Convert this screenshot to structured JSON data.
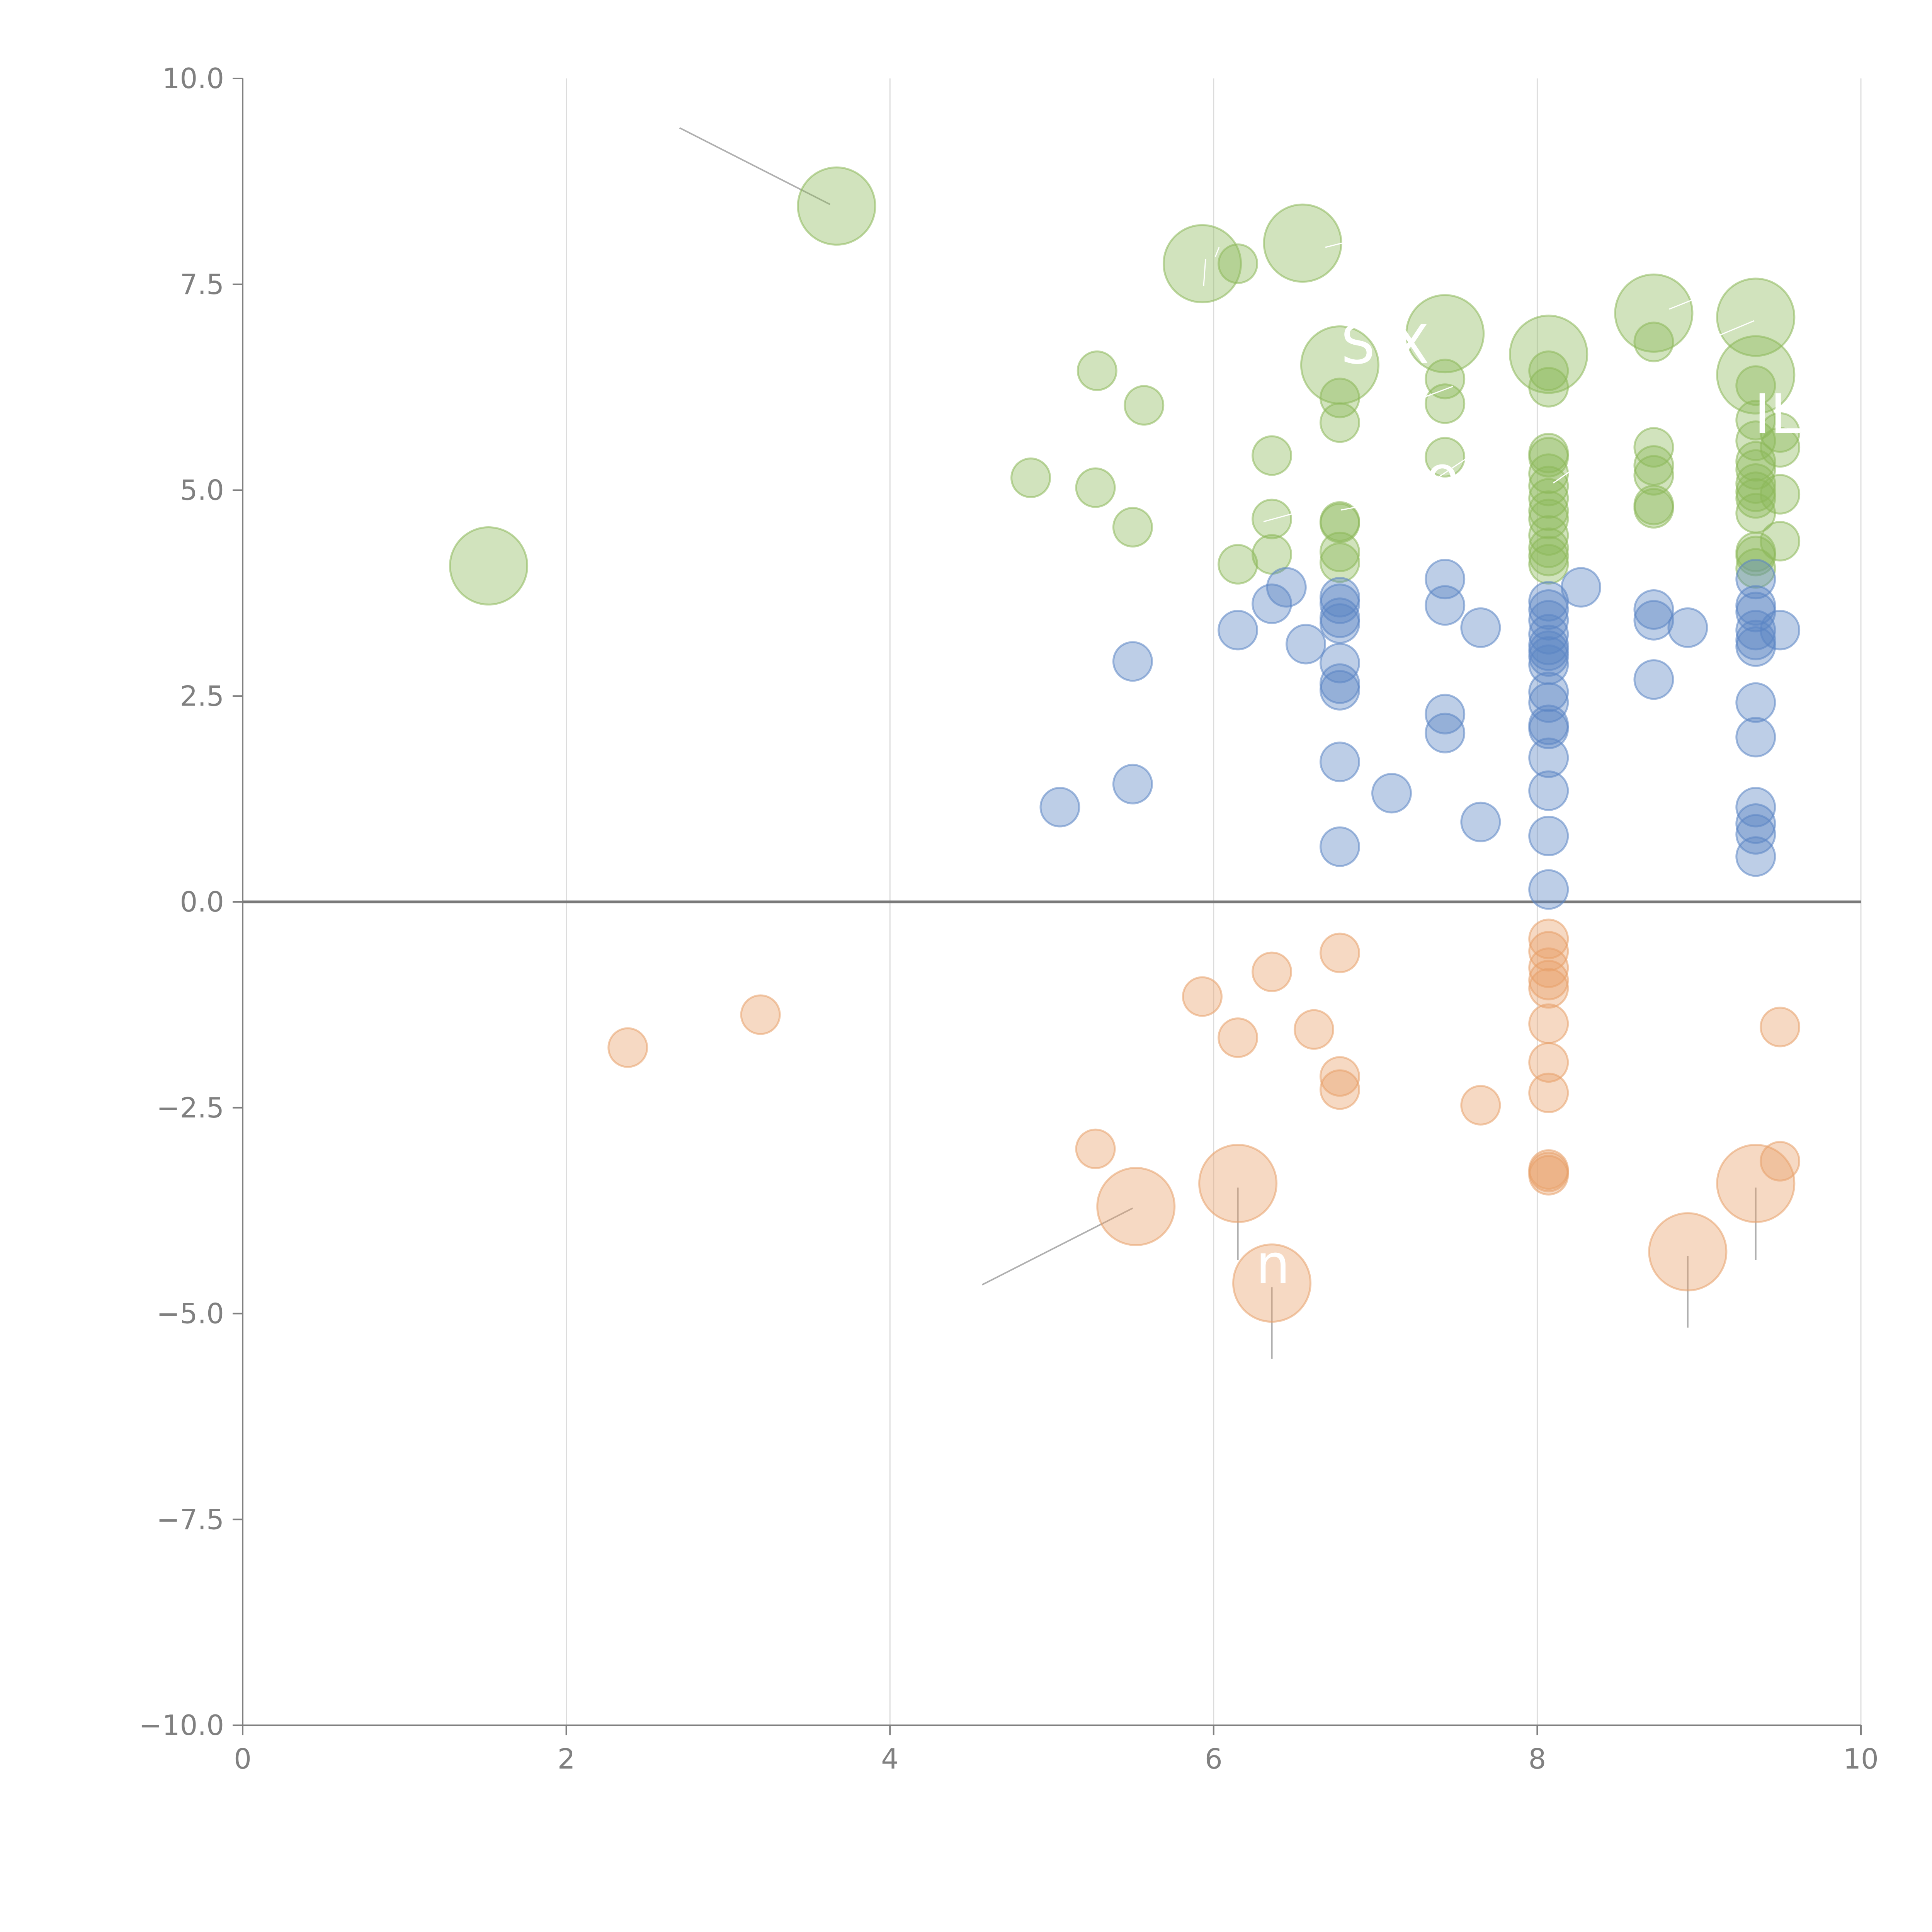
{
  "chart_data": {
    "type": "scatter",
    "title": "",
    "xlabel": "",
    "ylabel": "",
    "xlim": [
      0,
      10
    ],
    "ylim": [
      -10,
      10
    ],
    "grid": "vertical",
    "x_ticks": [
      0,
      2,
      4,
      6,
      8,
      10
    ],
    "x_tick_labels": [
      "0",
      "2",
      "4",
      "6",
      "8",
      "10"
    ],
    "y_ticks": [
      10,
      7.5,
      5,
      2.5,
      0,
      -2.5,
      -5,
      -7.5,
      -10
    ],
    "y_tick_labels": [
      "10.0",
      "7.5",
      "5.0",
      "2.5",
      "0.0",
      "−2.5",
      "−5.0",
      "−7.5",
      "−10.0"
    ],
    "series": [
      {
        "name": "green",
        "color": "#8db85a",
        "stroke": "#a8c880",
        "points": [
          [
            3.67,
            8.45,
            3
          ],
          [
            1.52,
            4.08,
            3
          ],
          [
            5.93,
            7.75,
            3
          ],
          [
            6.55,
            8.0,
            3
          ],
          [
            6.15,
            7.75,
            1
          ],
          [
            7.43,
            6.9,
            3
          ],
          [
            6.78,
            6.52,
            3
          ],
          [
            8.07,
            6.65,
            3
          ],
          [
            8.72,
            7.15,
            3
          ],
          [
            9.35,
            7.1,
            3
          ],
          [
            9.35,
            6.4,
            3
          ],
          [
            5.28,
            6.45,
            1
          ],
          [
            5.57,
            6.03,
            1
          ],
          [
            4.87,
            5.15,
            1
          ],
          [
            5.27,
            5.03,
            1
          ],
          [
            5.5,
            4.55,
            1
          ],
          [
            6.15,
            4.1,
            1
          ],
          [
            6.36,
            5.42,
            1
          ],
          [
            6.36,
            4.65,
            1
          ],
          [
            6.36,
            4.22,
            1
          ],
          [
            6.78,
            6.12,
            1
          ],
          [
            6.78,
            5.82,
            1
          ],
          [
            6.78,
            4.62,
            1
          ],
          [
            6.78,
            4.6,
            1
          ],
          [
            6.78,
            4.25,
            1
          ],
          [
            6.78,
            4.12,
            1
          ],
          [
            7.43,
            6.35,
            1
          ],
          [
            7.43,
            6.05,
            1
          ],
          [
            7.43,
            5.4,
            1
          ],
          [
            8.07,
            6.45,
            1
          ],
          [
            8.07,
            6.25,
            1
          ],
          [
            8.07,
            5.45,
            1
          ],
          [
            8.07,
            5.4,
            1
          ],
          [
            8.07,
            5.2,
            1
          ],
          [
            8.07,
            5.05,
            1
          ],
          [
            8.07,
            4.9,
            1
          ],
          [
            8.07,
            4.75,
            1
          ],
          [
            8.07,
            4.65,
            1
          ],
          [
            8.07,
            4.45,
            1
          ],
          [
            8.07,
            4.3,
            1
          ],
          [
            8.07,
            4.2,
            1
          ],
          [
            8.07,
            4.1,
            1
          ],
          [
            8.72,
            6.8,
            1
          ],
          [
            8.72,
            5.52,
            1
          ],
          [
            8.72,
            5.3,
            1
          ],
          [
            8.72,
            5.18,
            1
          ],
          [
            8.72,
            4.82,
            1
          ],
          [
            8.72,
            4.78,
            1
          ],
          [
            9.35,
            6.27,
            1
          ],
          [
            9.35,
            5.85,
            1
          ],
          [
            9.35,
            5.6,
            1
          ],
          [
            9.35,
            5.35,
            1
          ],
          [
            9.35,
            5.25,
            1
          ],
          [
            9.35,
            5.08,
            1
          ],
          [
            9.35,
            4.98,
            1
          ],
          [
            9.35,
            4.9,
            1
          ],
          [
            9.35,
            4.72,
            1
          ],
          [
            9.35,
            4.25,
            1
          ],
          [
            9.35,
            4.2,
            1
          ],
          [
            9.35,
            4.05,
            1
          ],
          [
            9.5,
            5.7,
            1
          ],
          [
            9.5,
            5.52,
            1
          ],
          [
            9.5,
            4.95,
            1
          ],
          [
            9.5,
            4.38,
            1
          ]
        ]
      },
      {
        "name": "blue",
        "color": "#5b85c4",
        "stroke": "#7a9dd0",
        "points": [
          [
            5.05,
            1.15,
            1
          ],
          [
            5.5,
            2.92,
            1
          ],
          [
            5.5,
            1.43,
            1
          ],
          [
            6.15,
            3.3,
            1
          ],
          [
            6.36,
            3.62,
            1
          ],
          [
            6.45,
            3.82,
            1
          ],
          [
            6.57,
            3.13,
            1
          ],
          [
            6.78,
            3.7,
            1
          ],
          [
            6.78,
            3.62,
            1
          ],
          [
            6.78,
            3.45,
            1
          ],
          [
            6.78,
            3.38,
            1
          ],
          [
            6.78,
            2.9,
            1
          ],
          [
            6.78,
            2.65,
            1
          ],
          [
            6.78,
            2.57,
            1
          ],
          [
            6.78,
            1.7,
            1
          ],
          [
            6.78,
            0.67,
            1
          ],
          [
            7.1,
            1.32,
            1
          ],
          [
            7.43,
            3.92,
            1
          ],
          [
            7.43,
            3.6,
            1
          ],
          [
            7.43,
            2.28,
            1
          ],
          [
            7.43,
            2.05,
            1
          ],
          [
            7.65,
            3.33,
            1
          ],
          [
            7.65,
            0.97,
            1
          ],
          [
            8.07,
            3.65,
            1
          ],
          [
            8.07,
            3.55,
            1
          ],
          [
            8.07,
            3.42,
            1
          ],
          [
            8.07,
            3.25,
            1
          ],
          [
            8.07,
            3.12,
            1
          ],
          [
            8.07,
            3.05,
            1
          ],
          [
            8.07,
            2.98,
            1
          ],
          [
            8.07,
            2.88,
            1
          ],
          [
            8.07,
            2.55,
            1
          ],
          [
            8.07,
            2.42,
            1
          ],
          [
            8.07,
            2.15,
            1
          ],
          [
            8.07,
            2.1,
            1
          ],
          [
            8.07,
            1.75,
            1
          ],
          [
            8.07,
            1.35,
            1
          ],
          [
            8.07,
            0.8,
            1
          ],
          [
            8.07,
            0.15,
            1
          ],
          [
            8.27,
            3.82,
            1
          ],
          [
            8.72,
            3.55,
            1
          ],
          [
            8.72,
            3.42,
            1
          ],
          [
            8.72,
            2.7,
            1
          ],
          [
            8.93,
            3.33,
            1
          ],
          [
            9.35,
            3.92,
            1
          ],
          [
            9.35,
            3.6,
            1
          ],
          [
            9.35,
            3.52,
            1
          ],
          [
            9.35,
            3.3,
            1
          ],
          [
            9.35,
            3.18,
            1
          ],
          [
            9.35,
            3.1,
            1
          ],
          [
            9.35,
            2.42,
            1
          ],
          [
            9.35,
            2.0,
            1
          ],
          [
            9.35,
            1.15,
            1
          ],
          [
            9.35,
            0.95,
            1
          ],
          [
            9.35,
            0.82,
            1
          ],
          [
            9.35,
            0.55,
            1
          ],
          [
            9.5,
            3.3,
            1
          ]
        ]
      },
      {
        "name": "orange",
        "color": "#e8a06a",
        "stroke": "#eab088",
        "points": [
          [
            2.38,
            -1.77,
            1
          ],
          [
            3.2,
            -1.37,
            1
          ],
          [
            5.27,
            -3.0,
            1
          ],
          [
            5.52,
            -3.7,
            3
          ],
          [
            5.93,
            -1.15,
            1
          ],
          [
            6.15,
            -1.65,
            1
          ],
          [
            6.15,
            -3.42,
            3
          ],
          [
            6.36,
            -0.85,
            1
          ],
          [
            6.36,
            -4.63,
            3
          ],
          [
            6.62,
            -1.55,
            1
          ],
          [
            6.78,
            -0.62,
            1
          ],
          [
            6.78,
            -2.12,
            1
          ],
          [
            6.78,
            -2.28,
            1
          ],
          [
            7.65,
            -2.47,
            1
          ],
          [
            8.07,
            -0.45,
            1
          ],
          [
            8.07,
            -0.6,
            1
          ],
          [
            8.07,
            -0.8,
            1
          ],
          [
            8.07,
            -0.95,
            1
          ],
          [
            8.07,
            -1.05,
            1
          ],
          [
            8.07,
            -1.48,
            1
          ],
          [
            8.07,
            -1.95,
            1
          ],
          [
            8.07,
            -2.32,
            1
          ],
          [
            8.07,
            -3.25,
            1
          ],
          [
            8.07,
            -3.28,
            1
          ],
          [
            8.07,
            -3.32,
            1
          ],
          [
            8.93,
            -4.25,
            3
          ],
          [
            9.35,
            -3.42,
            3
          ],
          [
            9.5,
            -1.52,
            1
          ],
          [
            9.5,
            -3.15,
            1
          ]
        ]
      }
    ],
    "leader_lines": [
      {
        "from": [
          2.7,
          9.4
        ],
        "to": [
          3.63,
          8.47
        ]
      },
      {
        "from": [
          4.57,
          -4.65
        ],
        "to": [
          5.5,
          -3.72
        ]
      },
      {
        "from": [
          6.15,
          -3.47
        ],
        "to": [
          6.15,
          -4.35
        ]
      },
      {
        "from": [
          6.36,
          -4.68
        ],
        "to": [
          6.36,
          -5.55
        ]
      },
      {
        "from": [
          8.93,
          -4.3
        ],
        "to": [
          8.93,
          -5.17
        ]
      },
      {
        "from": [
          9.35,
          -3.47
        ],
        "to": [
          9.35,
          -4.35
        ]
      }
    ]
  }
}
